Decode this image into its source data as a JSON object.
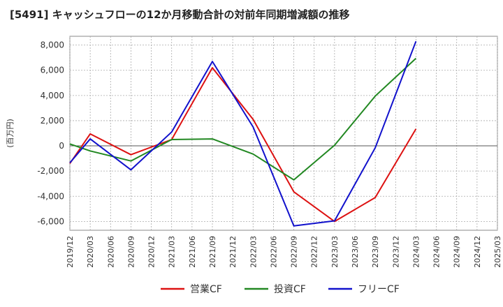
{
  "chart_data": {
    "type": "line",
    "title": "[5491]  キャッシュフローの12か月移動合計の対前年同期増減額の推移",
    "ylabel": "(百万円)",
    "xlabel": "",
    "ylim": [
      -6700,
      8700
    ],
    "yticks": [
      -6000,
      -4000,
      -2000,
      0,
      2000,
      4000,
      6000,
      8000
    ],
    "ytick_labels": [
      "-6,000",
      "-4,000",
      "-2,000",
      "0",
      "2,000",
      "4,000",
      "6,000",
      "8,000"
    ],
    "categories": [
      "2019/12",
      "2020/03",
      "2020/06",
      "2020/09",
      "2020/12",
      "2021/03",
      "2021/06",
      "2021/09",
      "2021/12",
      "2022/03",
      "2022/06",
      "2022/09",
      "2022/12",
      "2023/03",
      "2023/06",
      "2023/09",
      "2023/12",
      "2024/03",
      "2024/06",
      "2024/09",
      "2024/12",
      "2025/03"
    ],
    "grid": true,
    "legend_position": "bottom",
    "series": [
      {
        "name": "営業CF",
        "color": "#dd1111",
        "values": [
          -1400,
          950,
          null,
          -700,
          null,
          500,
          null,
          6200,
          null,
          2100,
          null,
          -3650,
          null,
          -6000,
          null,
          -4100,
          null,
          1350,
          null,
          null,
          null,
          null
        ]
      },
      {
        "name": "投資CF",
        "color": "#228822",
        "values": [
          150,
          -400,
          null,
          -1200,
          null,
          500,
          null,
          550,
          null,
          -650,
          null,
          -2700,
          null,
          50,
          null,
          3950,
          null,
          6950,
          null,
          null,
          null,
          null
        ]
      },
      {
        "name": "フリーCF",
        "color": "#1111cc",
        "values": [
          -1350,
          550,
          null,
          -1900,
          null,
          1100,
          null,
          6700,
          null,
          1500,
          null,
          -6350,
          null,
          -5950,
          null,
          -150,
          null,
          8300,
          null,
          null,
          null,
          null
        ]
      }
    ]
  }
}
